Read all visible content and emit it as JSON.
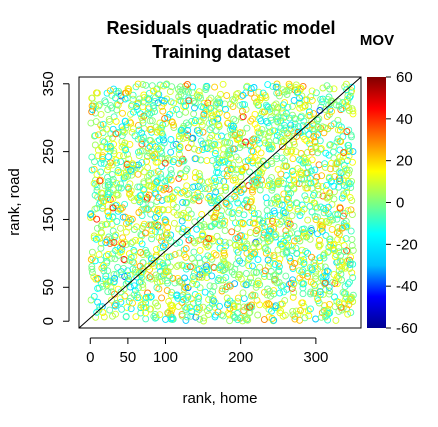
{
  "chart_data": {
    "type": "scatter",
    "title": "Residuals quadratic model",
    "subtitle": "Training dataset",
    "xlabel": "rank, home",
    "ylabel": "rank, road",
    "x_ticks": [
      0,
      50,
      100,
      200,
      300
    ],
    "y_ticks": [
      0,
      50,
      150,
      250,
      350
    ],
    "xlim": [
      -15,
      360
    ],
    "ylim": [
      -10,
      360
    ],
    "reference_line": {
      "from": [
        -15,
        -10
      ],
      "to": [
        360,
        360
      ],
      "color": "#000000"
    },
    "point_count": 2400,
    "points_note": "dense uniform scatter of open circles over ranks 0-350 in both axes, coloured by MOV residual",
    "color_scale": {
      "title": "MOV",
      "min": -60,
      "max": 60,
      "ticks": [
        -60,
        -40,
        -20,
        0,
        20,
        40,
        60
      ],
      "colors": [
        "#00008F",
        "#0000FF",
        "#00BFFF",
        "#00FFFF",
        "#7FFF7F",
        "#FFFF00",
        "#FF7F00",
        "#FF0000",
        "#800000"
      ]
    },
    "grid": false
  }
}
